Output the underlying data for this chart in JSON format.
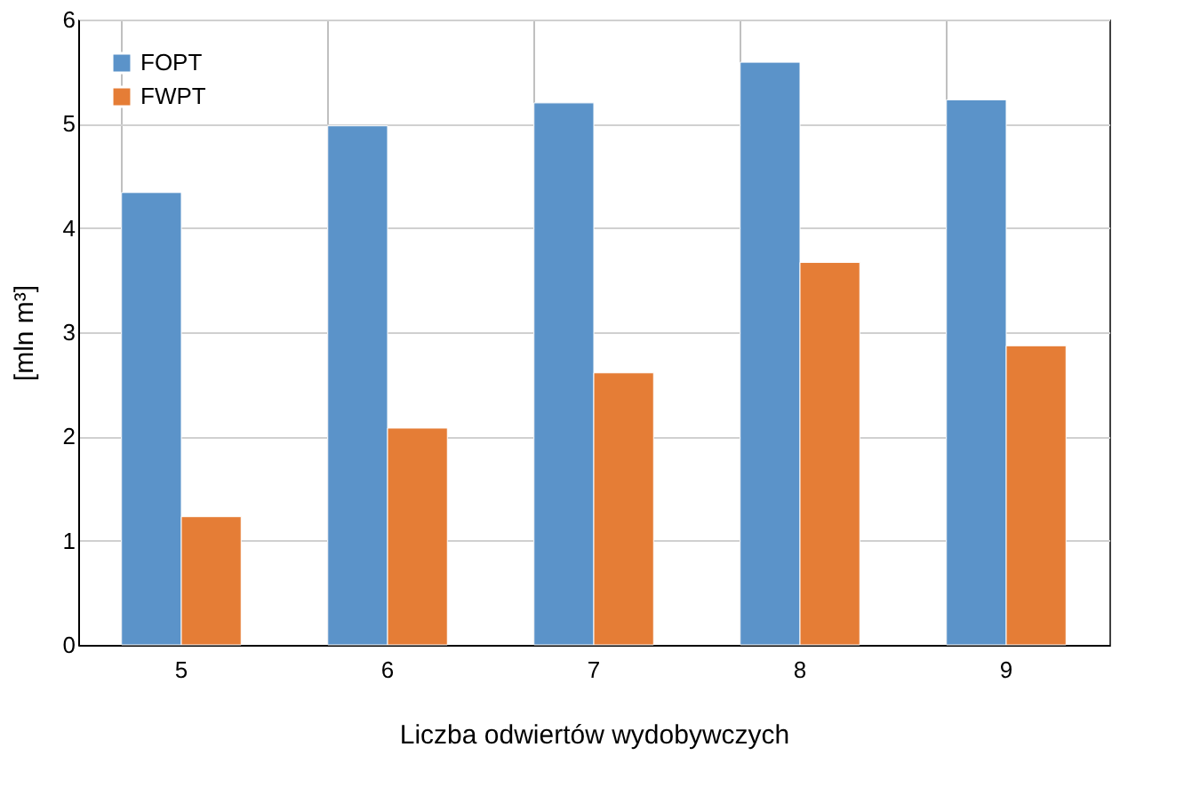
{
  "chart_data": {
    "type": "bar",
    "xlabel": "Liczba odwiertów wydobywczych",
    "ylabel": "[mln m³]",
    "categories": [
      "5",
      "6",
      "7",
      "8",
      "9"
    ],
    "series": [
      {
        "name": "FOPT",
        "color": "#5b93c9",
        "values": [
          4.34,
          4.98,
          5.2,
          5.59,
          5.23
        ]
      },
      {
        "name": "FWPT",
        "color": "#e57d36",
        "values": [
          1.23,
          2.08,
          2.61,
          3.67,
          2.87
        ]
      }
    ],
    "ylim": [
      0,
      6
    ],
    "yticks": [
      0,
      1,
      2,
      3,
      4,
      5,
      6
    ],
    "grid": true,
    "legend": "top left"
  }
}
